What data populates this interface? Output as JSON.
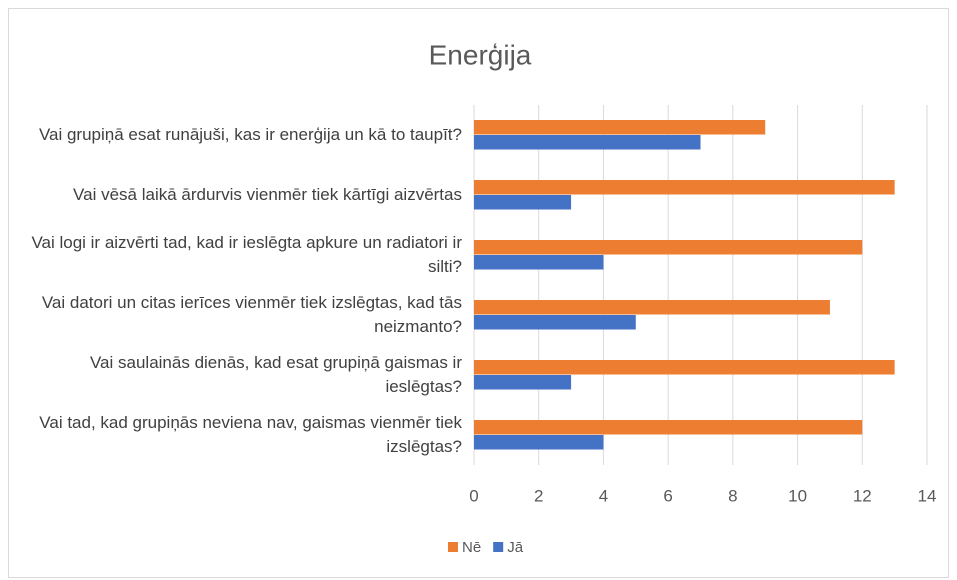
{
  "chart_data": {
    "type": "hbar",
    "title": "Enerģija",
    "categories": [
      "Vai grupiņā esat runājuši, kas ir enerģija un kā to taupīt?",
      "Vai vēsā laikā ārdurvis vienmēr tiek kārtīgi aizvērtas",
      "Vai logi ir aizvērti tad, kad ir ieslēgta apkure un radiatori ir silti?",
      "Vai datori un citas ierīces vienmēr tiek izslēgtas, kad tās neizmanto?",
      "Vai saulainās dienās, kad esat grupiņā gaismas ir ieslēgtas?",
      "Vai tad, kad grupiņās neviena nav, gaismas vienmēr tiek izslēgtas?"
    ],
    "series": [
      {
        "name": "Nē",
        "color": "#ed7d31",
        "values": [
          9,
          13,
          12,
          11,
          13,
          12
        ]
      },
      {
        "name": "Jā",
        "color": "#4472c4",
        "values": [
          7,
          3,
          4,
          5,
          3,
          4
        ]
      }
    ],
    "xlim": [
      0,
      14
    ],
    "xticks": [
      0,
      2,
      4,
      6,
      8,
      10,
      12,
      14
    ],
    "grid": true,
    "legend": "bottom"
  }
}
